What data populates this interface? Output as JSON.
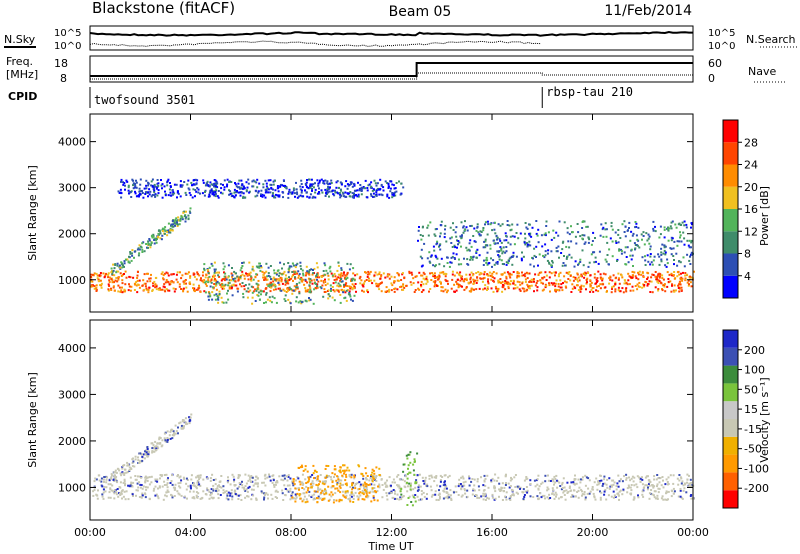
{
  "header": {
    "title": "Blackstone (fitACF)",
    "beam": "Beam 05",
    "date": "11/Feb/2014"
  },
  "noise_panel": {
    "left_label": "N.Sky",
    "right_label": "N.Search",
    "left_ticks": [
      "10^5",
      "10^0"
    ],
    "right_ticks": [
      "10^5",
      "10^0"
    ]
  },
  "freq_panel": {
    "left_label_1": "Freq.",
    "left_label_2": "[MHz]",
    "right_label": "Nave",
    "left_ticks": [
      "18",
      "8"
    ],
    "right_ticks": [
      "60",
      "0"
    ]
  },
  "cpid": {
    "label": "CPID",
    "segments": [
      {
        "name": "twofsound 3501",
        "start_hour": 0
      },
      {
        "name": "rbsp-tau 210",
        "start_hour": 18
      }
    ]
  },
  "colors": {
    "power_scale": [
      "#0000ff",
      "#2d4fb4",
      "#3f8c6a",
      "#52b45a",
      "#f0c020",
      "#ff8c00",
      "#ff4500",
      "#ff0000"
    ],
    "velocity_scale": [
      "#ff0000",
      "#ff6000",
      "#ff9a00",
      "#f0b000",
      "#c8c8b4",
      "#c8c8c8",
      "#7ac43c",
      "#3c8c3c",
      "#3c50b4",
      "#1e28c8"
    ]
  },
  "chart_data": [
    {
      "type": "heatmap",
      "panel": "power",
      "ylabel": "Slant Range [km]",
      "yticks": [
        1000,
        2000,
        3000,
        4000
      ],
      "ylim": [
        300,
        4600
      ],
      "xlim_hours": [
        0,
        24
      ],
      "colorbar": {
        "label": "Power [dB]",
        "ticks": [
          "4",
          "8",
          "12",
          "16",
          "20",
          "24",
          "28"
        ],
        "range": [
          0,
          32
        ]
      },
      "bands": [
        {
          "name": "main-near-range",
          "start_hour": 0.0,
          "end_hour": 24.0,
          "range_km": [
            750,
            1200
          ],
          "level": "high"
        },
        {
          "name": "rising-morning",
          "start_hour": 0.8,
          "end_hour": 4.0,
          "range_km": [
            1200,
            2500
          ],
          "level": "mid"
        },
        {
          "name": "far-range-3000",
          "start_hour": 1.0,
          "end_hour": 12.5,
          "range_km": [
            2800,
            3200
          ],
          "level": "low"
        },
        {
          "name": "midday-lower",
          "start_hour": 4.5,
          "end_hour": 10.5,
          "range_km": [
            500,
            1400
          ],
          "level": "mid"
        },
        {
          "name": "afternoon-upper",
          "start_hour": 13.0,
          "end_hour": 24.0,
          "range_km": [
            1300,
            2300
          ],
          "level": "low-mid"
        }
      ]
    },
    {
      "type": "heatmap",
      "panel": "velocity",
      "ylabel": "Slant Range [km]",
      "yticks": [
        1000,
        2000,
        3000,
        4000
      ],
      "ylim": [
        300,
        4600
      ],
      "xlim_hours": [
        0,
        24
      ],
      "xticks": [
        "00:00",
        "04:00",
        "08:00",
        "12:00",
        "16:00",
        "20:00",
        "00:00"
      ],
      "xlabel": "Time UT",
      "colorbar": {
        "label": "Velocity [m s⁻¹]",
        "ticks": [
          "-200",
          "-100",
          "-50",
          "-15",
          "15",
          "50",
          "100",
          "200"
        ],
        "range": [
          -250,
          250
        ]
      },
      "bands": [
        {
          "name": "ground-scatter",
          "start_hour": 0.0,
          "end_hour": 24.0,
          "range_km": [
            750,
            1300
          ],
          "value": "gray"
        },
        {
          "name": "morning-slope",
          "start_hour": 0.8,
          "end_hour": 4.0,
          "range_km": [
            1200,
            2500
          ],
          "value": "gray"
        },
        {
          "name": "orange-flow",
          "start_hour": 8.0,
          "end_hour": 11.5,
          "range_km": [
            700,
            1500
          ],
          "value": "orange"
        },
        {
          "name": "green-flow",
          "start_hour": 12.3,
          "end_hour": 13.0,
          "range_km": [
            600,
            1800
          ],
          "value": "green"
        }
      ]
    }
  ]
}
